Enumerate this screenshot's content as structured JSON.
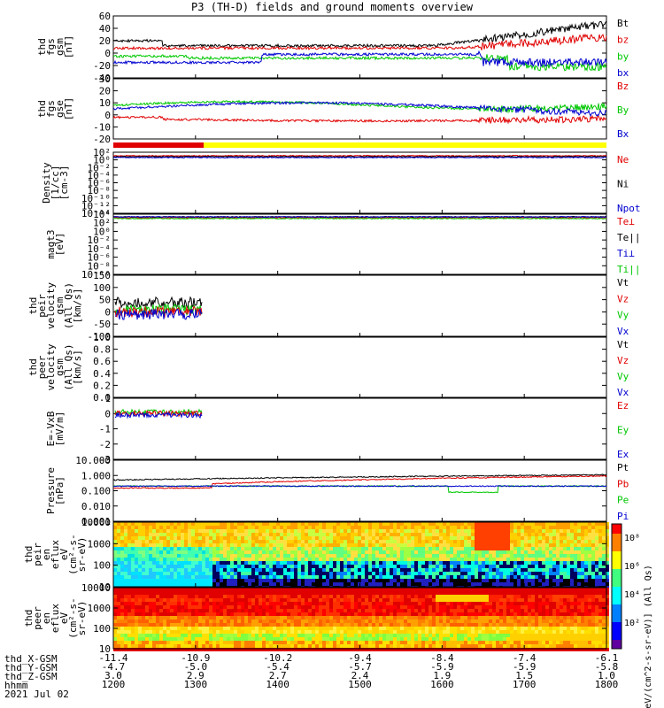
{
  "title": "P3 (TH-D) fields and ground moments overview",
  "colors": {
    "black": "#000000",
    "red": "#e00000",
    "green": "#00c800",
    "blue": "#0000d0",
    "yellow": "#ffff00"
  },
  "chart_data": [
    {
      "type": "line",
      "name": "fgs-gsm",
      "ylabel": [
        "thd",
        "fgs",
        "gsm",
        "[nT]"
      ],
      "ylim": [
        -40,
        60
      ],
      "ticks": [
        "60",
        "40",
        "20",
        "0",
        "-20",
        "-40"
      ],
      "legend": [
        {
          "label": "Bt",
          "color": "black"
        },
        {
          "label": "bz",
          "color": "red"
        },
        {
          "label": "by",
          "color": "green"
        },
        {
          "label": "bx",
          "color": "blue"
        }
      ]
    },
    {
      "type": "line",
      "name": "fgs-gse",
      "ylabel": [
        "thd",
        "fgs",
        "gse",
        "[nT]"
      ],
      "ylim": [
        -20,
        30
      ],
      "ticks": [
        "30",
        "20",
        "10",
        "0",
        "-10",
        "-20"
      ],
      "legend": [
        {
          "label": "Bz",
          "color": "red"
        },
        {
          "label": "By",
          "color": "green"
        },
        {
          "label": "Bx",
          "color": "blue"
        }
      ]
    },
    {
      "type": "line",
      "name": "density",
      "ylabel": [
        "Density",
        "[1/cc]",
        "[cm-3]"
      ],
      "ylim": [
        1e-14,
        100.0
      ],
      "ticks": [
        "10²",
        "10⁰",
        "10⁻²",
        "10⁻⁴",
        "10⁻⁶",
        "10⁻⁸",
        "10⁻¹⁰",
        "10⁻¹²",
        "10⁻¹⁴"
      ],
      "legend": [
        {
          "label": "Ne",
          "color": "red"
        },
        {
          "label": "Ni",
          "color": "black"
        },
        {
          "label": "Npot",
          "color": "blue"
        }
      ]
    },
    {
      "type": "line",
      "name": "temperature",
      "ylabel": [
        "magt3",
        "[eV]"
      ],
      "ylim": [
        1e-10,
        10000.0
      ],
      "ticks": [
        "10⁴",
        "10²",
        "10⁰",
        "10⁻²",
        "10⁻⁴",
        "10⁻⁶",
        "10⁻⁸",
        "10⁻¹⁰"
      ],
      "legend": [
        {
          "label": "Te⊥",
          "color": "red"
        },
        {
          "label": "Te||",
          "color": "black"
        },
        {
          "label": "Ti⊥",
          "color": "blue"
        },
        {
          "label": "Ti||",
          "color": "green"
        }
      ]
    },
    {
      "type": "line",
      "name": "peir-velocity",
      "ylabel": [
        "thd",
        "peir",
        "velocity",
        "gsm",
        "(All Qs)",
        "[km/s]"
      ],
      "ylim": [
        -100,
        150
      ],
      "ticks": [
        "150",
        "100",
        "50",
        "0",
        "-50",
        "-100"
      ],
      "legend": [
        {
          "label": "Vt",
          "color": "black"
        },
        {
          "label": "Vz",
          "color": "red"
        },
        {
          "label": "Vy",
          "color": "green"
        },
        {
          "label": "Vx",
          "color": "blue"
        }
      ]
    },
    {
      "type": "line",
      "name": "peer-velocity",
      "ylabel": [
        "thd",
        "peer",
        "velocity",
        "gsm",
        "(All Qs)",
        "[km/s]"
      ],
      "ylim": [
        0,
        1
      ],
      "ticks": [
        "1.0",
        "0.8",
        "0.6",
        "0.4",
        "0.2",
        "0.0"
      ],
      "legend": [
        {
          "label": "Vt",
          "color": "black"
        },
        {
          "label": "Vz",
          "color": "red"
        },
        {
          "label": "Vy",
          "color": "green"
        },
        {
          "label": "Vx",
          "color": "blue"
        }
      ]
    },
    {
      "type": "line",
      "name": "efield",
      "ylabel": [
        "E=-VxB",
        "[mV/m]"
      ],
      "ylim": [
        -3,
        1
      ],
      "ticks": [
        "1",
        "0",
        "-1",
        "-2",
        "-3"
      ],
      "legend": [
        {
          "label": "Ez",
          "color": "red"
        },
        {
          "label": "Ey",
          "color": "green"
        },
        {
          "label": "Ex",
          "color": "blue"
        }
      ]
    },
    {
      "type": "line",
      "name": "pressure",
      "ylabel": [
        "Pressure",
        "[nPa]"
      ],
      "ylim": [
        0.001,
        10
      ],
      "ticks": [
        "10.000",
        "1.000",
        "0.100",
        "0.010",
        "0.001"
      ],
      "legend": [
        {
          "label": "Pt",
          "color": "black"
        },
        {
          "label": "Pb",
          "color": "red"
        },
        {
          "label": "Pe",
          "color": "green"
        },
        {
          "label": "Pi",
          "color": "blue"
        }
      ]
    },
    {
      "type": "heatmap",
      "name": "peir-eflux",
      "ylabel": [
        "thd",
        "peir",
        "en",
        "eflux",
        "eV",
        "(cm²-s-",
        "sr-eV)"
      ],
      "ylim": [
        5,
        30000
      ],
      "ticks": [
        "10000",
        "1000",
        "100",
        "10"
      ]
    },
    {
      "type": "heatmap",
      "name": "peer-eflux",
      "ylabel": [
        "thd",
        "peer",
        "en",
        "eflux",
        "eV",
        "(cm²-s-",
        "sr-eV)"
      ],
      "ylim": [
        5,
        30000
      ],
      "ticks": [
        "10000",
        "1000",
        "100",
        "10"
      ]
    }
  ],
  "colorbar": {
    "label": "[eV/(cm^2-s-sr-eV)] (All Qs)",
    "ticks": [
      "10⁸",
      "10⁶",
      "10⁴",
      "10²"
    ]
  },
  "xaxis": {
    "labels": [
      "thd_X-GSM",
      "thd_Y-GSM",
      "thd_Z-GSM",
      "hhmm",
      "2021 Jul 02"
    ],
    "columns": [
      [
        "-11.4",
        "-4.7",
        "3.0",
        "1200"
      ],
      [
        "-10.9",
        "-5.0",
        "2.9",
        "1300"
      ],
      [
        "-10.2",
        "-5.4",
        "2.7",
        "1400"
      ],
      [
        "-9.4",
        "-5.7",
        "2.4",
        "1500"
      ],
      [
        "-8.4",
        "-5.9",
        "1.9",
        "1600"
      ],
      [
        "-7.4",
        "-5.9",
        "1.5",
        "1700"
      ],
      [
        "-6.1",
        "-5.8",
        "1.0",
        "1800"
      ]
    ]
  }
}
